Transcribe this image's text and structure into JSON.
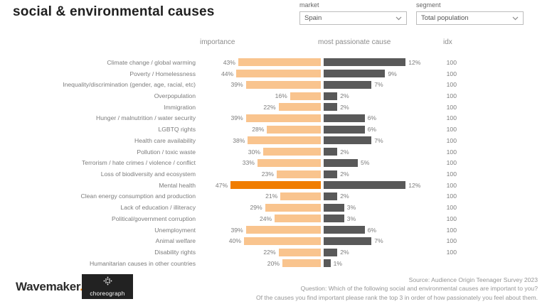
{
  "title": "social & environmental causes",
  "filters": {
    "market": {
      "label": "market",
      "value": "Spain"
    },
    "segment": {
      "label": "segment",
      "value": "Total population"
    }
  },
  "chart_data": {
    "type": "bar",
    "title": "social & environmental causes",
    "columns": [
      "importance",
      "most passionate cause",
      "idx"
    ],
    "value_unit": "%",
    "categories": [
      "Climate change / global warming",
      "Poverty / Homelessness",
      "Inequality/discrimination (gender, age, racial, etc)",
      "Overpopulation",
      "Immigration",
      "Hunger / malnutrition / water security",
      "LGBTQ rights",
      "Health care availability",
      "Pollution / toxic waste",
      "Terrorism / hate crimes / violence / conflict",
      "Loss of biodiversity and ecosystem",
      "Mental health",
      "Clean energy consumption and production",
      "Lack of education / illiteracy",
      "Political/government corruption",
      "Unemployment",
      "Animal welfare",
      "Disability rights",
      "Humanitarian causes in other countries"
    ],
    "series": [
      {
        "name": "importance",
        "values": [
          43,
          44,
          39,
          16,
          22,
          39,
          28,
          38,
          30,
          33,
          23,
          47,
          21,
          29,
          24,
          39,
          40,
          22,
          20
        ]
      },
      {
        "name": "most passionate cause",
        "values": [
          12,
          9,
          7,
          2,
          2,
          6,
          6,
          7,
          2,
          5,
          2,
          12,
          2,
          3,
          3,
          6,
          7,
          2,
          1
        ]
      },
      {
        "name": "idx",
        "values": [
          "100",
          "100",
          "100",
          "100",
          "100",
          "100",
          "100",
          "100",
          "100",
          "100",
          "100",
          "100",
          "100",
          "100",
          "100",
          "100",
          "100",
          "100",
          ""
        ]
      }
    ],
    "highlighted_category": "Mental health",
    "legend": "none",
    "grid": "off"
  },
  "colors": {
    "importance_bar": "#F9C48E",
    "importance_highlight": "#F07D00",
    "passionate_bar": "#595959"
  },
  "footer": {
    "lines": [
      "Source: Audience Origin Teenager Survey 2023",
      "Question: Which of the following social and environmental causes are important to you?",
      "Of the causes you find important please rank the top 3 in order of how passionately you feel about them."
    ]
  },
  "logos": {
    "wavemaker": "Wavemaker",
    "choreograph": "choreograph"
  }
}
